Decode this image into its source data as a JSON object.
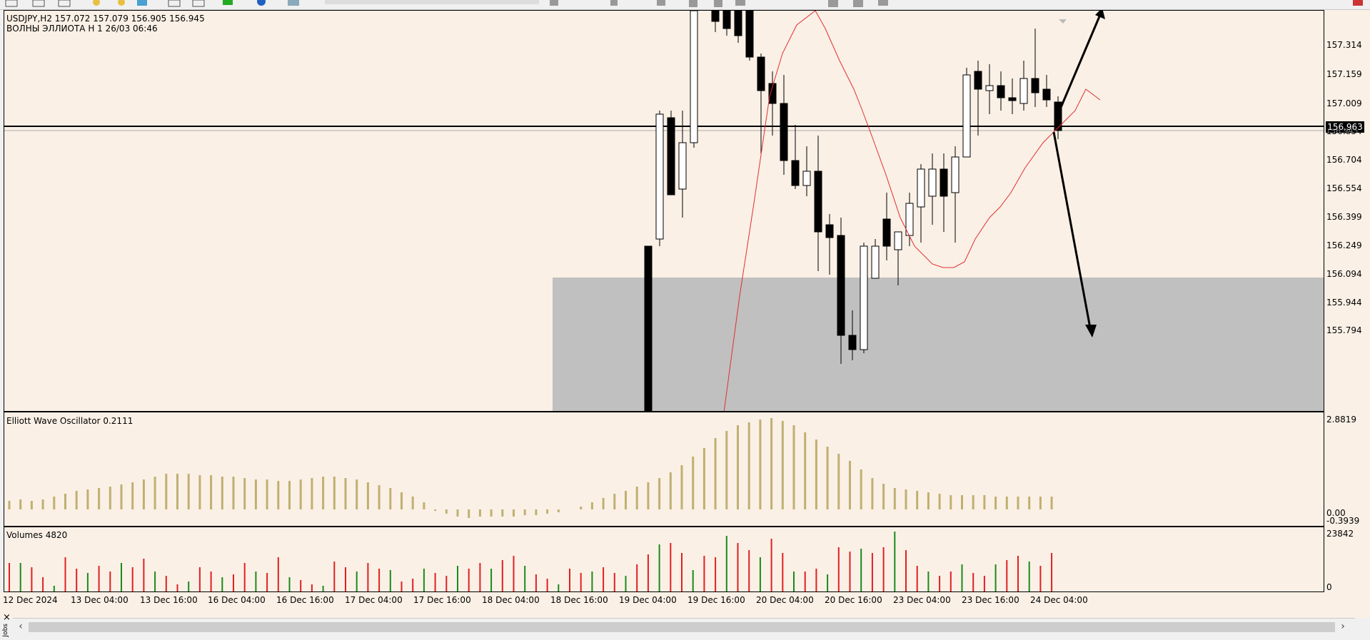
{
  "toolbar": {
    "icons": [
      "line-tool",
      "channel-tool",
      "zoom-in",
      "zoom-out",
      "chart-grid",
      "period-sep",
      "navigator",
      "green-plus",
      "globe",
      "chart-window",
      "sep",
      "timeframes",
      "crosshair",
      "cursor",
      "line",
      "arrow",
      "fibo",
      "text",
      "label"
    ]
  },
  "main_chart": {
    "title": "USDJPY,H2  157.072 157.079 156.905 156.945",
    "subtitle": "ВОЛНЫ ЭЛЛИОТА H 1 26/03 06:46",
    "price_axis": [
      "157.314",
      "157.159",
      "157.009",
      "156.854",
      "156.704",
      "156.554",
      "156.399",
      "156.249",
      "156.094",
      "155.944",
      "155.794"
    ],
    "current_price": "156.963",
    "overlapped_price": "156.945"
  },
  "oscillator": {
    "title": "Elliott Wave Oscillator 0.2111",
    "axis": [
      "2.8819",
      "0.00",
      "-0.3939"
    ]
  },
  "volumes": {
    "title": "Volumes 4820",
    "axis": [
      "23842",
      "0"
    ]
  },
  "time_axis": [
    "12 Dec 2024",
    "13 Dec 04:00",
    "13 Dec 16:00",
    "16 Dec 04:00",
    "16 Dec 16:00",
    "17 Dec 04:00",
    "17 Dec 16:00",
    "18 Dec 04:00",
    "18 Dec 16:00",
    "19 Dec 04:00",
    "19 Dec 16:00",
    "20 Dec 04:00",
    "20 Dec 16:00",
    "23 Dec 04:00",
    "23 Dec 16:00",
    "24 Dec 04:00"
  ],
  "bottom": {
    "close_label": "×",
    "side_label": "Jobs"
  },
  "colors": {
    "background": "#faf0e6",
    "zone": "#c0c0c0",
    "ma": "#e03030",
    "osc": "#c0b070",
    "vol_up": "#1a8a1a",
    "vol_down": "#e02020"
  }
}
